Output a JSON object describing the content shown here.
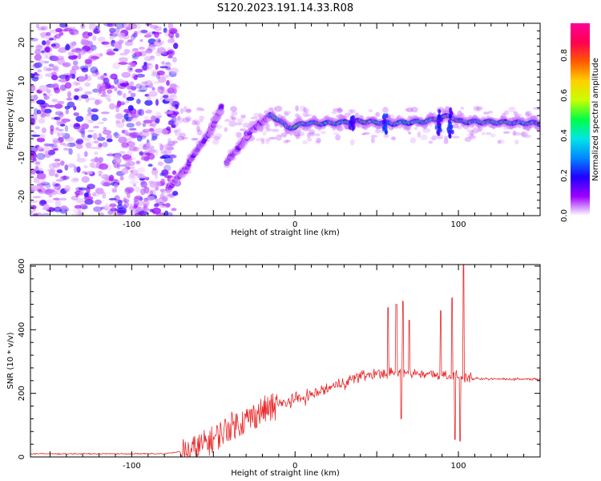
{
  "figure": {
    "title": "S120.2023.191.14.33.R08"
  },
  "chart_data": [
    {
      "type": "heatmap",
      "title": "S120.2023.191.14.33.R08",
      "xlabel": "Height of straight line (km)",
      "ylabel": "Frequency (Hz)",
      "xlim": [
        -162,
        150
      ],
      "ylim": [
        -25,
        25
      ],
      "xticks": [
        -100,
        0,
        100
      ],
      "yticks": [
        -20,
        -10,
        0,
        10,
        20
      ],
      "colorbar": {
        "label": "Normalized spectral amplitude",
        "range": [
          0,
          0.96
        ],
        "ticks": [
          0.0,
          0.2,
          0.4,
          0.6,
          0.8
        ],
        "colormap": [
          "#ffffff",
          "#9d00ff",
          "#2000ff",
          "#0088ff",
          "#00e5e5",
          "#00ff44",
          "#c8ff00",
          "#ffd000",
          "#ff5a00",
          "#ff0050",
          "#ff0096"
        ]
      },
      "features": {
        "noise_region_x": [
          -162,
          -78
        ],
        "chirp_segments": [
          {
            "x": [
              -78,
              -65
            ],
            "y": [
              -18,
              -12
            ],
            "amplitude": 0.35
          },
          {
            "x": [
              -65,
              -50
            ],
            "y": [
              -11,
              -2
            ],
            "amplitude": 0.3
          },
          {
            "x": [
              -52,
              -45
            ],
            "y": [
              -3,
              3
            ],
            "amplitude": 0.3
          },
          {
            "x": [
              -42,
              -28
            ],
            "y": [
              -11,
              -4
            ],
            "amplitude": 0.3
          },
          {
            "x": [
              -30,
              -15
            ],
            "y": [
              -4,
              1
            ],
            "amplitude": 0.35
          }
        ],
        "ridge": [
          {
            "x": -15,
            "y": 1
          },
          {
            "x": -10,
            "y": 0
          },
          {
            "x": -5,
            "y": -2
          },
          {
            "x": 0,
            "y": -2
          },
          {
            "x": 5,
            "y": -1
          },
          {
            "x": 20,
            "y": -1
          },
          {
            "x": 40,
            "y": -0.5
          },
          {
            "x": 60,
            "y": -1
          },
          {
            "x": 80,
            "y": -0.5
          },
          {
            "x": 95,
            "y": 1
          },
          {
            "x": 100,
            "y": -0.5
          },
          {
            "x": 150,
            "y": -1
          }
        ]
      }
    },
    {
      "type": "line",
      "xlabel": "Height of straight line (km)",
      "ylabel": "SNR (10 * v/v)",
      "xlim": [
        -162,
        150
      ],
      "ylim": [
        0,
        605
      ],
      "xticks": [
        -100,
        0,
        100
      ],
      "yticks": [
        0,
        200,
        400,
        600
      ],
      "color": "#e8282a",
      "envelope": [
        {
          "x": -162,
          "y": 10
        },
        {
          "x": -80,
          "y": 10
        },
        {
          "x": -65,
          "y": 20
        },
        {
          "x": -50,
          "y": 60
        },
        {
          "x": -40,
          "y": 100
        },
        {
          "x": -30,
          "y": 120
        },
        {
          "x": -20,
          "y": 150
        },
        {
          "x": -10,
          "y": 165
        },
        {
          "x": 0,
          "y": 180
        },
        {
          "x": 10,
          "y": 195
        },
        {
          "x": 20,
          "y": 215
        },
        {
          "x": 30,
          "y": 235
        },
        {
          "x": 40,
          "y": 255
        },
        {
          "x": 50,
          "y": 262
        },
        {
          "x": 60,
          "y": 265
        },
        {
          "x": 80,
          "y": 262
        },
        {
          "x": 100,
          "y": 255
        },
        {
          "x": 110,
          "y": 245
        },
        {
          "x": 150,
          "y": 245
        }
      ],
      "spikes": [
        {
          "x": 57,
          "y": 470
        },
        {
          "x": 62,
          "y": 480
        },
        {
          "x": 65,
          "y": 120
        },
        {
          "x": 66,
          "y": 490
        },
        {
          "x": 70,
          "y": 430
        },
        {
          "x": 89,
          "y": 460
        },
        {
          "x": 96,
          "y": 500
        },
        {
          "x": 103,
          "y": 605
        },
        {
          "x": 101,
          "y": 50
        },
        {
          "x": 98,
          "y": 55
        }
      ]
    }
  ]
}
